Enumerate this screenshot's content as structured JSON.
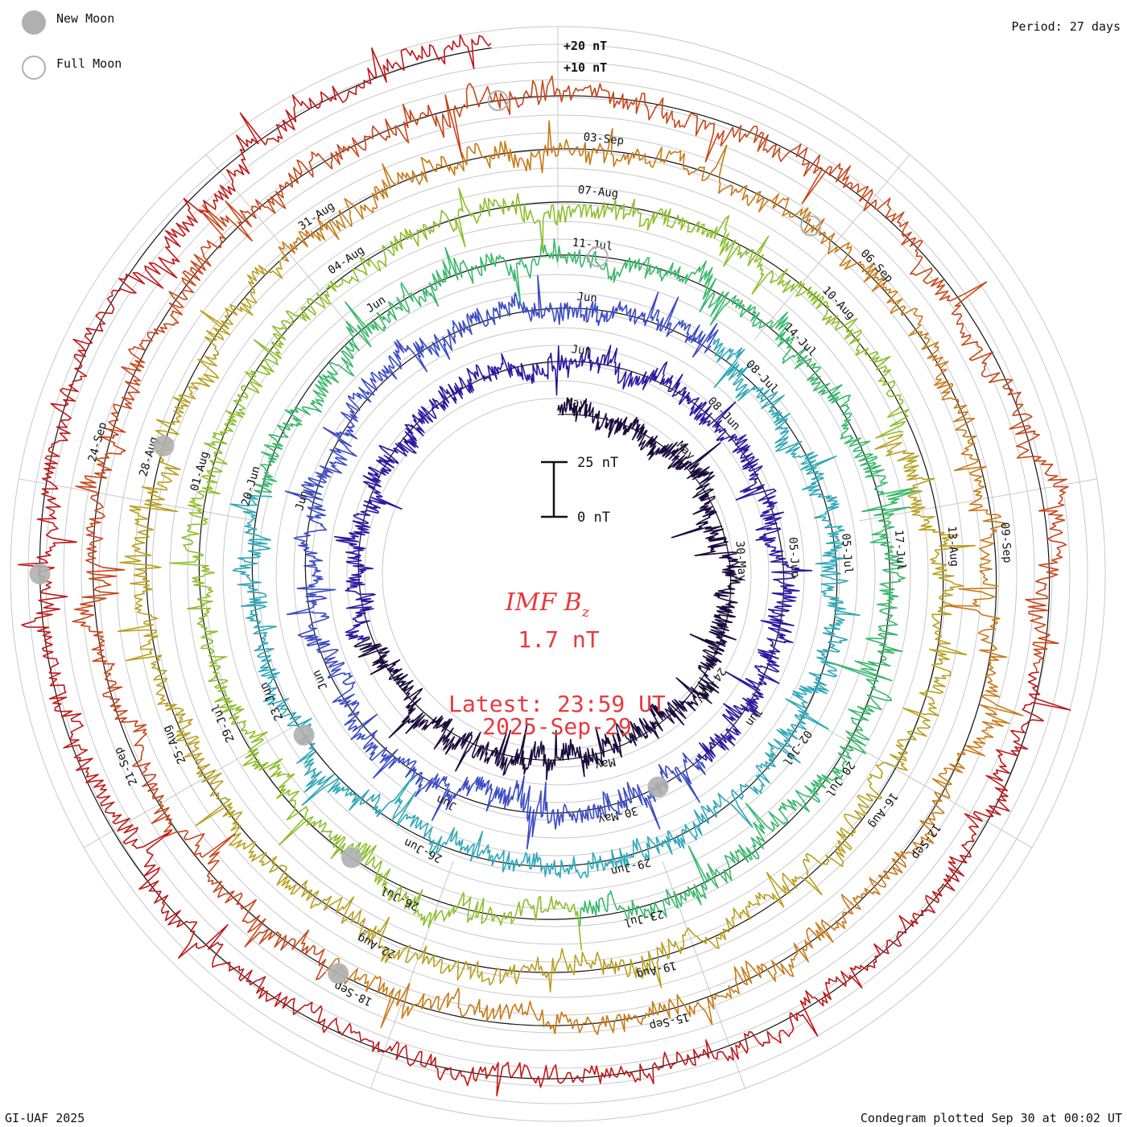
{
  "legend": {
    "new_moon_label": "New Moon",
    "full_moon_label": "Full Moon",
    "new_moon_color": "#b0b0b0"
  },
  "period_label": "Period: 27 days",
  "footer_left": "GI-UAF 2025",
  "footer_right": "Condegram plotted Sep 30 at 00:02 UT",
  "scale_ticks": [
    "+20 nT",
    "+10 nT"
  ],
  "scale_bar": {
    "top_label": "25 nT",
    "bottom_label": "0 nT"
  },
  "center": {
    "title": "IMF B",
    "title_sub": "z",
    "value": "1.7 nT",
    "latest_label": "Latest: 23:59 UT",
    "latest_date": "2025-Sep-29"
  },
  "chart_data": {
    "type": "spiral",
    "quantity": "IMF Bz",
    "units": "nT",
    "period_days": 27,
    "baseline_value_nT": 0,
    "ring_labels": [
      "+20 nT",
      "+10 nT"
    ],
    "rotations": [
      {
        "index": 1,
        "color": "#1a0a3c",
        "date_labels": [
          "May",
          "May",
          "30-May",
          "24-May",
          "May"
        ]
      },
      {
        "index": 2,
        "color": "#2a18a0",
        "date_labels": [
          "Jun",
          "08-Jun",
          "05-Jun",
          "Jun",
          "30-May",
          "Jun",
          "Jun",
          "Jun"
        ]
      },
      {
        "index": 3,
        "color": "#3a4bc4",
        "date_labels": [
          "Jun",
          "08-Jul",
          "05-Jul",
          "02-Jul",
          "29-Jun",
          "26-Jun",
          "23-Jun",
          "20-Jun",
          "Jun"
        ]
      },
      {
        "index": 4,
        "color": "#2fa8b8",
        "date_labels": [
          "11-Jul",
          "14-Jul",
          "17-Jul",
          "20-Jul",
          "23-Jul",
          "26-Jul",
          "29-Jul",
          "01-Aug",
          "04-Aug"
        ]
      },
      {
        "index": 5,
        "color": "#38b86a",
        "date_labels": [
          "07-Aug",
          "10-Aug",
          "13-Aug",
          "16-Aug",
          "19-Aug",
          "22-Aug",
          "25-Aug",
          "28-Aug",
          "31-Aug"
        ]
      },
      {
        "index": 6,
        "color": "#8cbf2a",
        "date_labels": [
          "03-Sep",
          "06-Sep",
          "09-Sep",
          "12-Sep",
          "15-Sep",
          "18-Sep",
          "21-Sep",
          "24-Sep"
        ]
      },
      {
        "index": 7,
        "color": "#c8461a",
        "date_labels": []
      }
    ],
    "color_sequence": [
      "#1a0a3c",
      "#2a18a0",
      "#3a4bc4",
      "#2fa8b8",
      "#38b86a",
      "#8cbf2a",
      "#b8a020",
      "#c87a18",
      "#c8461a",
      "#c0181a"
    ],
    "new_moon_markers": [
      "07-Aug",
      "21-Sep",
      "25-Jun",
      "23-Jul",
      "27-May",
      "26-Jul"
    ],
    "full_moon_markers": [
      "11-Jul",
      "09-Aug",
      "07-Sep"
    ],
    "latest_value_nT": 1.7
  }
}
